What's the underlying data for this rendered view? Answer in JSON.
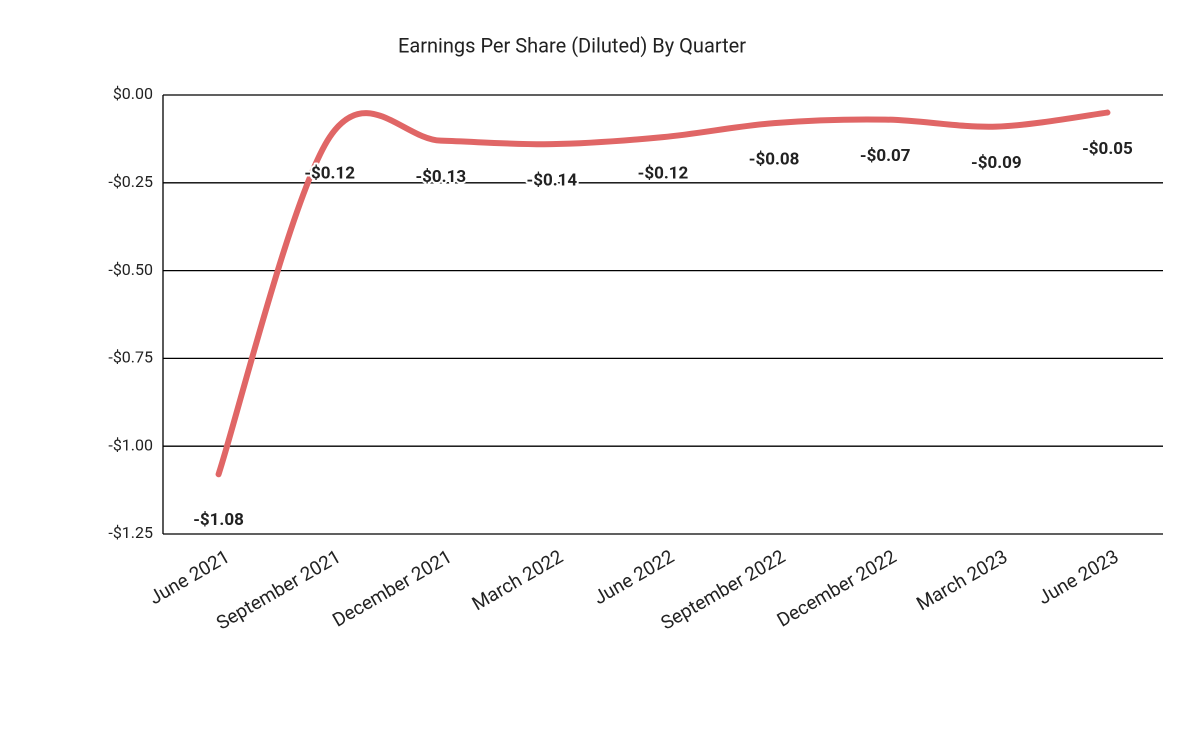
{
  "chart_data": {
    "type": "line",
    "title": "Earnings Per Share (Diluted) By Quarter",
    "categories": [
      "June 2021",
      "September 2021",
      "December 2021",
      "March 2022",
      "June 2022",
      "September 2022",
      "December 2022",
      "March 2023",
      "June 2023"
    ],
    "series": [
      {
        "color": "#e06666",
        "values": [
          -1.08,
          -0.12,
          -0.13,
          -0.14,
          -0.12,
          -0.08,
          -0.07,
          -0.09,
          -0.05
        ],
        "value_labels": [
          "-$1.08",
          "-$0.12",
          "-$0.13",
          "-$0.14",
          "-$0.12",
          "-$0.08",
          "-$0.07",
          "-$0.09",
          "-$0.05"
        ]
      }
    ],
    "ylim": [
      -1.25,
      0
    ],
    "yticks": [
      {
        "value": 0,
        "label": "$0.00"
      },
      {
        "value": -0.25,
        "label": "-$0.25"
      },
      {
        "value": -0.5,
        "label": "-$0.50"
      },
      {
        "value": -0.75,
        "label": "-$0.75"
      },
      {
        "value": -1,
        "label": "-$1.00"
      },
      {
        "value": -1.25,
        "label": "-$1.25"
      }
    ],
    "grid": true,
    "smooth": true
  }
}
